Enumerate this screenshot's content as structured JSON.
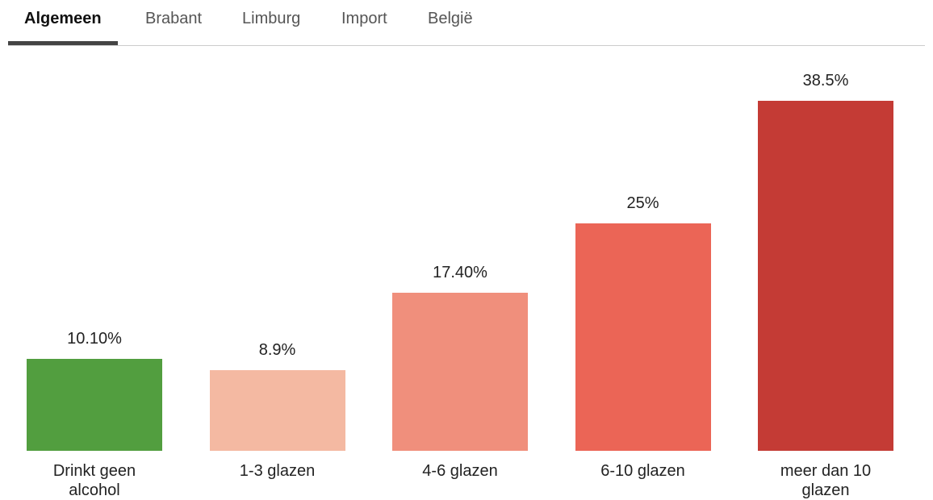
{
  "tabs": [
    "Algemeen",
    "Brabant",
    "Limburg",
    "Import",
    "België"
  ],
  "selected_tab": 0,
  "chart_data": {
    "type": "bar",
    "categories": [
      "Drinkt geen alcohol",
      "1-3 glazen",
      "4-6 glazen",
      "6-10 glazen",
      "meer dan 10 glazen"
    ],
    "values": [
      10.1,
      8.9,
      17.4,
      25,
      38.5
    ],
    "value_labels": [
      "10.10%",
      "8.9%",
      "17.40%",
      "25%",
      "38.5%"
    ],
    "colors": [
      "#529e3f",
      "#f4b9a2",
      "#f08f7c",
      "#eb6556",
      "#c43b35"
    ]
  }
}
